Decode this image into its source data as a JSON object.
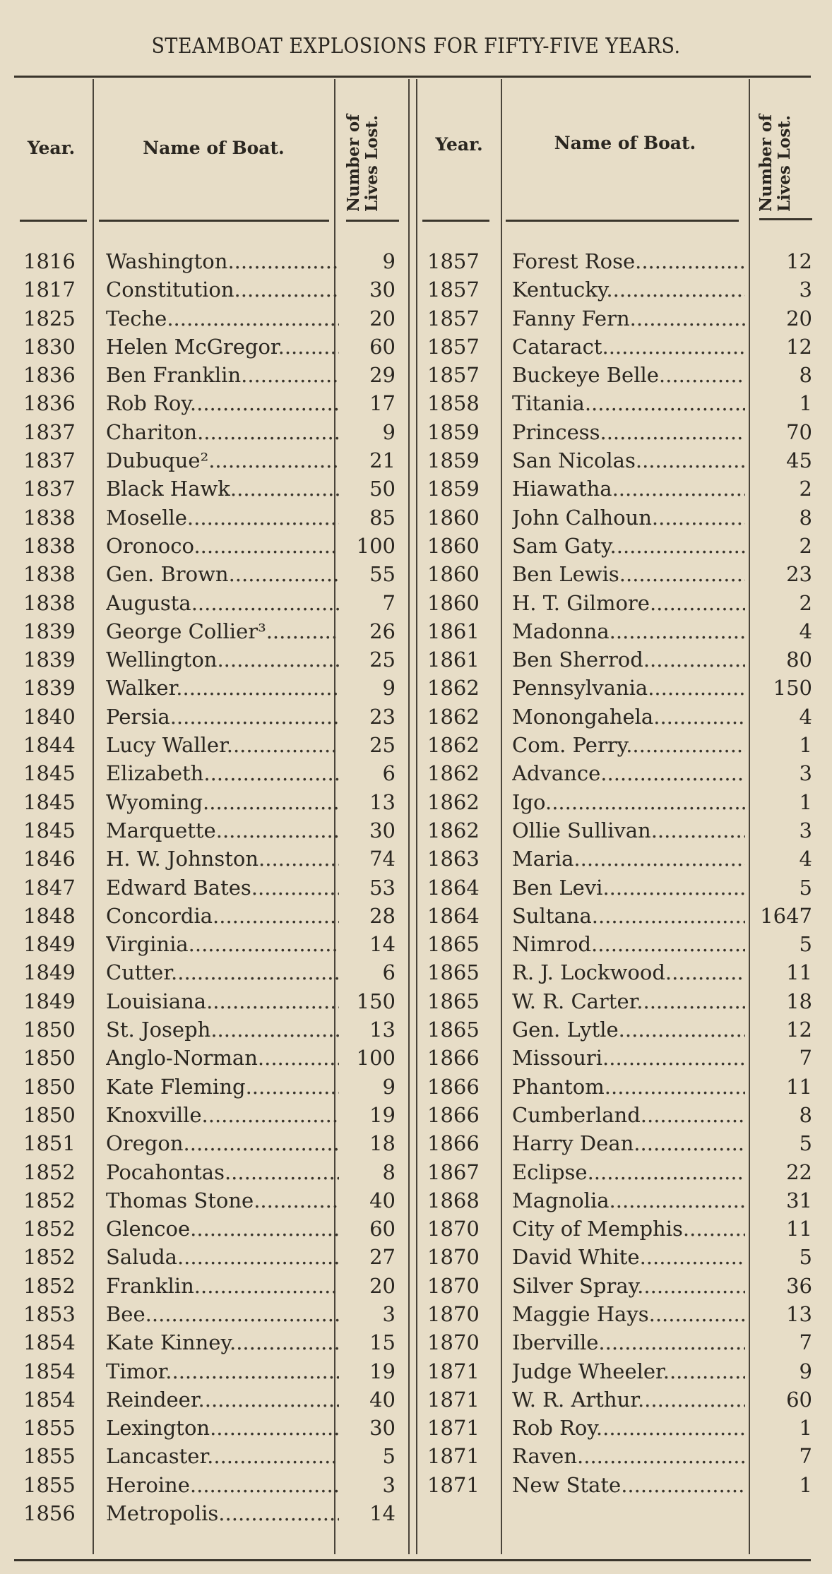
{
  "title": "STEAMBOAT EXPLOSIONS FOR FIFTY-FIVE YEARS.",
  "headers": {
    "year": "Year.",
    "name": "Name of Boat.",
    "lives_line1": "Number of",
    "lives_line2": "Lives Lost."
  },
  "left": [
    [
      "1816",
      "Washington",
      "9"
    ],
    [
      "1817",
      "Constitution",
      "30"
    ],
    [
      "1825",
      "Teche",
      "20"
    ],
    [
      "1830",
      "Helen McGregor",
      "60"
    ],
    [
      "1836",
      "Ben Franklin",
      "29"
    ],
    [
      "1836",
      "Rob Roy",
      "17"
    ],
    [
      "1837",
      "Chariton",
      "9"
    ],
    [
      "1837",
      "Dubuque²",
      "21"
    ],
    [
      "1837",
      "Black Hawk",
      "50"
    ],
    [
      "1838",
      "Moselle",
      "85"
    ],
    [
      "1838",
      "Oronoco",
      "100"
    ],
    [
      "1838",
      "Gen. Brown",
      "55"
    ],
    [
      "1838",
      "Augusta",
      "7"
    ],
    [
      "1839",
      "George Collier³",
      "26"
    ],
    [
      "1839",
      "Wellington",
      "25"
    ],
    [
      "1839",
      "Walker",
      "9"
    ],
    [
      "1840",
      "Persia",
      "23"
    ],
    [
      "1844",
      "Lucy Waller",
      "25"
    ],
    [
      "1845",
      "Elizabeth",
      "6"
    ],
    [
      "1845",
      "Wyoming",
      "13"
    ],
    [
      "1845",
      "Marquette",
      "30"
    ],
    [
      "1846",
      "H. W. Johnston",
      "74"
    ],
    [
      "1847",
      "Edward Bates",
      "53"
    ],
    [
      "1848",
      "Concordia",
      "28"
    ],
    [
      "1849",
      "Virginia",
      "14"
    ],
    [
      "1849",
      "Cutter",
      "6"
    ],
    [
      "1849",
      "Louisiana",
      "150"
    ],
    [
      "1850",
      "St. Joseph",
      "13"
    ],
    [
      "1850",
      "Anglo-Norman",
      "100"
    ],
    [
      "1850",
      "Kate Fleming",
      "9"
    ],
    [
      "1850",
      "Knoxville",
      "19"
    ],
    [
      "1851",
      "Oregon",
      "18"
    ],
    [
      "1852",
      "Pocahontas",
      "8"
    ],
    [
      "1852",
      "Thomas Stone",
      "40"
    ],
    [
      "1852",
      "Glencoe",
      "60"
    ],
    [
      "1852",
      "Saluda",
      "27"
    ],
    [
      "1852",
      "Franklin",
      "20"
    ],
    [
      "1853",
      "Bee",
      "3"
    ],
    [
      "1854",
      "Kate Kinney",
      "15"
    ],
    [
      "1854",
      "Timor",
      "19"
    ],
    [
      "1854",
      "Reindeer",
      "40"
    ],
    [
      "1855",
      "Lexington",
      "30"
    ],
    [
      "1855",
      "Lancaster",
      "5"
    ],
    [
      "1855",
      "Heroine",
      "3"
    ],
    [
      "1856",
      "Metropolis",
      "14"
    ]
  ],
  "right": [
    [
      "1857",
      "Forest Rose",
      "12"
    ],
    [
      "1857",
      "Kentucky",
      "3"
    ],
    [
      "1857",
      "Fanny Fern",
      "20"
    ],
    [
      "1857",
      "Cataract",
      "12"
    ],
    [
      "1857",
      "Buckeye Belle",
      "8"
    ],
    [
      "1858",
      "Titania",
      "1"
    ],
    [
      "1859",
      "Princess",
      "70"
    ],
    [
      "1859",
      "San Nicolas",
      "45"
    ],
    [
      "1859",
      "Hiawatha",
      "2"
    ],
    [
      "1860",
      "John Calhoun",
      "8"
    ],
    [
      "1860",
      "Sam Gaty",
      "2"
    ],
    [
      "1860",
      "Ben Lewis",
      "23"
    ],
    [
      "1860",
      "H. T. Gilmore",
      "2"
    ],
    [
      "1861",
      "Madonna",
      "4"
    ],
    [
      "1861",
      "Ben Sherrod",
      "80"
    ],
    [
      "1862",
      "Pennsylvania",
      "150"
    ],
    [
      "1862",
      "Monongahela",
      "4"
    ],
    [
      "1862",
      "Com. Perry",
      "1"
    ],
    [
      "1862",
      "Advance",
      "3"
    ],
    [
      "1862",
      "Igo",
      "1"
    ],
    [
      "1862",
      "Ollie Sullivan",
      "3"
    ],
    [
      "1863",
      "Maria",
      "4"
    ],
    [
      "1864",
      "Ben Levi",
      "5"
    ],
    [
      "1864",
      "Sultana",
      "1647"
    ],
    [
      "1865",
      "Nimrod",
      "5"
    ],
    [
      "1865",
      "R. J. Lockwood",
      "11"
    ],
    [
      "1865",
      "W. R. Carter",
      "18"
    ],
    [
      "1865",
      "Gen. Lytle",
      "12"
    ],
    [
      "1866",
      "Missouri",
      "7"
    ],
    [
      "1866",
      "Phantom",
      "11"
    ],
    [
      "1866",
      "Cumberland",
      "8"
    ],
    [
      "1866",
      "Harry Dean",
      "5"
    ],
    [
      "1867",
      "Eclipse",
      "22"
    ],
    [
      "1868",
      "Magnolia",
      "31"
    ],
    [
      "1870",
      "City of Memphis",
      "11"
    ],
    [
      "1870",
      "David White",
      "5"
    ],
    [
      "1870",
      "Silver Spray",
      "36"
    ],
    [
      "1870",
      "Maggie Hays",
      "13"
    ],
    [
      "1870",
      "Iberville",
      "7"
    ],
    [
      "1871",
      "Judge Wheeler",
      "9"
    ],
    [
      "1871",
      "W. R. Arthur",
      "60"
    ],
    [
      "1871",
      "Rob Roy",
      "1"
    ],
    [
      "1871",
      "Raven",
      "7"
    ],
    [
      "1871",
      "New State",
      "1"
    ]
  ]
}
